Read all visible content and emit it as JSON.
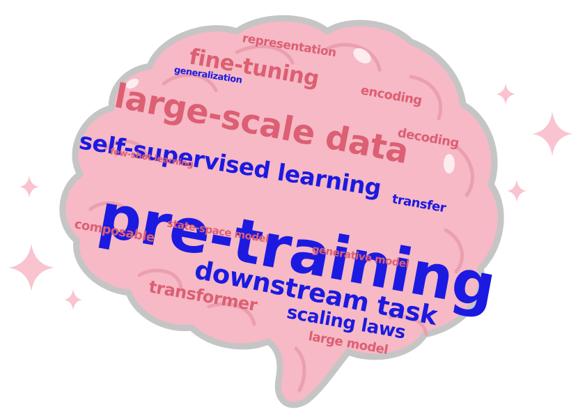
{
  "illustration": {
    "subject": "brain-icon",
    "brain_fill": "#f6b9c5",
    "brain_stroke": "#c5c5c5",
    "brain_fold": "#eb9fae",
    "sparkle_color": "#f9c3cf",
    "word_color_pink": "#dc5f73",
    "word_color_blue": "#1c1ae0"
  },
  "words": [
    {
      "key": "pretraining",
      "text": "pre-training",
      "color": "blue"
    },
    {
      "key": "large_scale_data",
      "text": "large-scale data",
      "color": "pink"
    },
    {
      "key": "self_supervised",
      "text": "self-supervised learning",
      "color": "blue"
    },
    {
      "key": "downstream",
      "text": "downstream task",
      "color": "blue"
    },
    {
      "key": "fine_tuning",
      "text": "fine-tuning",
      "color": "pink"
    },
    {
      "key": "scaling_laws",
      "text": "scaling laws",
      "color": "blue"
    },
    {
      "key": "transformer",
      "text": "transformer",
      "color": "pink"
    },
    {
      "key": "representation",
      "text": "representation",
      "color": "pink"
    },
    {
      "key": "encoding",
      "text": "encoding",
      "color": "pink"
    },
    {
      "key": "decoding",
      "text": "decoding",
      "color": "pink"
    },
    {
      "key": "generalization",
      "text": "generalization",
      "color": "blue"
    },
    {
      "key": "few_shot",
      "text": "few-shot learning",
      "color": "pink"
    },
    {
      "key": "transfer",
      "text": "transfer",
      "color": "blue"
    },
    {
      "key": "composable",
      "text": "composable",
      "color": "pink"
    },
    {
      "key": "state_space",
      "text": "state-space model",
      "color": "pink"
    },
    {
      "key": "generative",
      "text": "generative model",
      "color": "pink"
    },
    {
      "key": "large_model",
      "text": "large model",
      "color": "pink"
    }
  ]
}
